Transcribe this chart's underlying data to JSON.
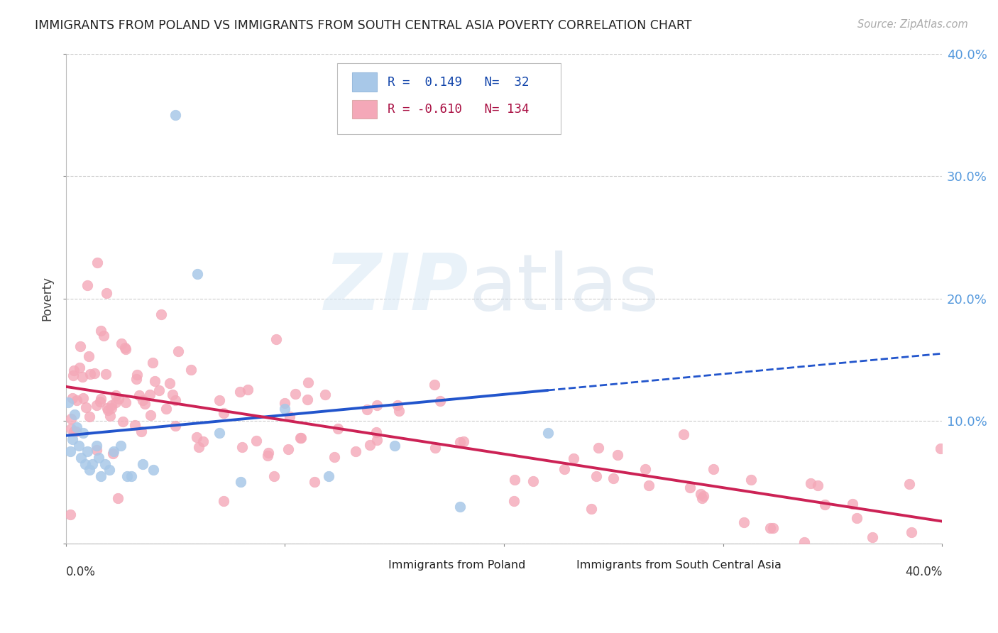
{
  "title": "IMMIGRANTS FROM POLAND VS IMMIGRANTS FROM SOUTH CENTRAL ASIA POVERTY CORRELATION CHART",
  "source": "Source: ZipAtlas.com",
  "ylabel": "Poverty",
  "color_poland": "#a8c8e8",
  "color_sca": "#f4a8b8",
  "trendline_poland_color": "#2255cc",
  "trendline_sca_color": "#cc2255",
  "legend_text1": "R =  0.149  N=  32",
  "legend_text2": "R = -0.610  N= 134",
  "legend_val1": "0.149",
  "legend_n1": "32",
  "legend_val2": "-0.610",
  "legend_n2": "134",
  "watermark_zip": "ZIP",
  "watermark_atlas": "atlas",
  "xlim": [
    0.0,
    0.4
  ],
  "ylim": [
    0.0,
    0.4
  ],
  "poland_trend_x0": 0.0,
  "poland_trend_y0": 0.088,
  "poland_trend_x1": 0.22,
  "poland_trend_y1": 0.125,
  "poland_trend_dash_x1": 0.4,
  "poland_trend_dash_y1": 0.155,
  "sca_trend_x0": 0.0,
  "sca_trend_y0": 0.128,
  "sca_trend_x1": 0.4,
  "sca_trend_y1": 0.018
}
